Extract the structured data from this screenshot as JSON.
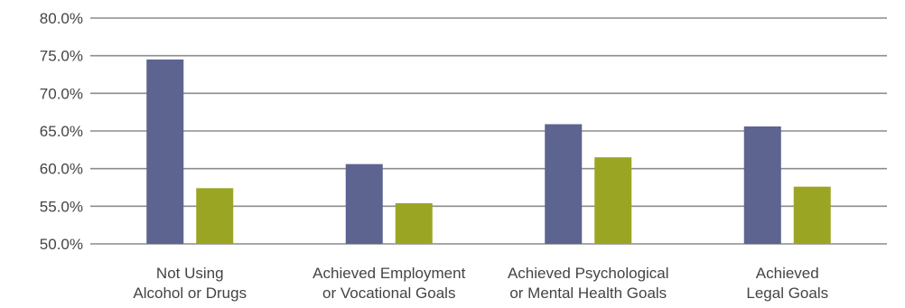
{
  "chart_data": {
    "type": "bar",
    "title": "",
    "xlabel": "",
    "ylabel": "",
    "ylim": [
      50,
      80
    ],
    "yticks": [
      "50.0%",
      "55.0%",
      "60.0%",
      "65.0%",
      "70.0%",
      "75.0%",
      "80.0%"
    ],
    "grid": true,
    "legend": "none",
    "categories": [
      [
        "Not Using",
        "Alcohol or Drugs"
      ],
      [
        "Achieved Employment",
        "or Vocational Goals"
      ],
      [
        "Achieved Psychological",
        "or Mental Health Goals"
      ],
      [
        "Achieved",
        "Legal Goals"
      ]
    ],
    "series": [
      {
        "color": "#5c648f",
        "values": [
          74.5,
          60.6,
          65.9,
          65.6
        ]
      },
      {
        "color": "#9aa623",
        "values": [
          57.4,
          55.4,
          61.5,
          57.6
        ]
      }
    ]
  }
}
